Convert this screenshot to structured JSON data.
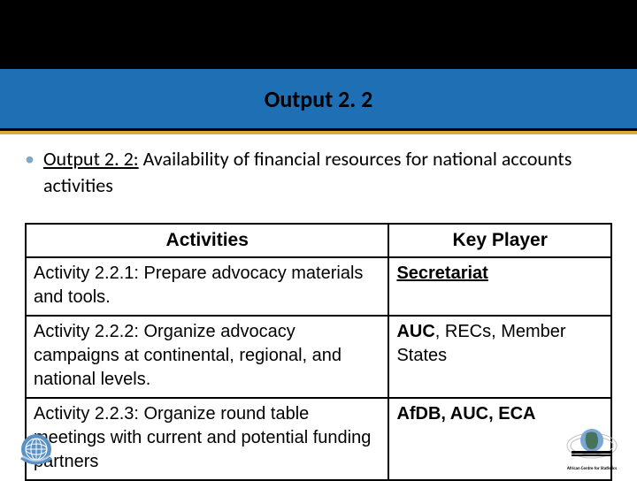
{
  "header": {
    "title": "Output 2. 2",
    "colors": {
      "black": "#000000",
      "blue": "#1f6fb5",
      "gold": "#d9a93e"
    }
  },
  "bullet": {
    "marker": "•",
    "label": "Output 2. 2:",
    "text": " Availability of financial resources for national accounts activities"
  },
  "table": {
    "columns": [
      "Activities",
      "Key Player"
    ],
    "rows": [
      {
        "activity": "Activity 2.2.1: Prepare advocacy materials and tools.",
        "player_html": "<span class='kp-underline'>Secretariat</span>"
      },
      {
        "activity": "Activity 2.2.2: Organize advocacy campaigns at continental, regional, and national levels.",
        "player_html": "<span class='kp-boldlead'>AUC</span>, RECs, Member States"
      },
      {
        "activity": "Activity 2.2.3: Organize round table meetings with current and potential funding partners",
        "player_html": "<span class='kp-boldlead'>AfDB, AUC, ECA</span>"
      }
    ]
  },
  "footer": {
    "right_caption": "African Centre for Statistics"
  }
}
